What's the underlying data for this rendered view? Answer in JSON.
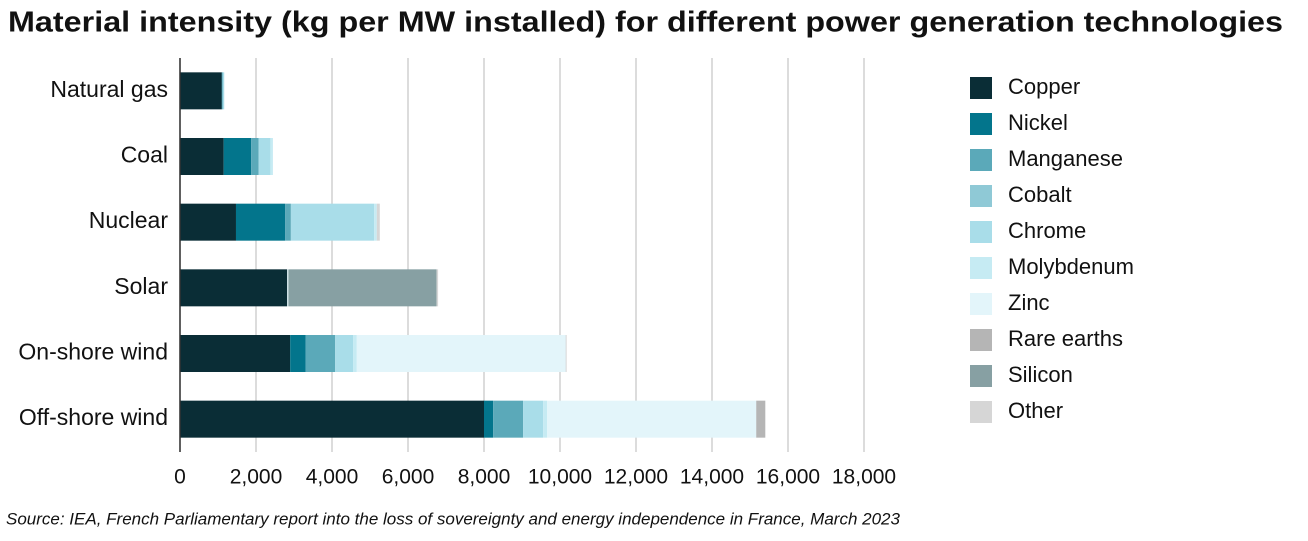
{
  "chart_data": {
    "type": "stacked-barh",
    "title": "Material intensity (kg per MW installed) for different  power generation technologies",
    "source": "Source: IEA, French Parliamentary report into the loss of sovereignty and energy independence in France, March 2023",
    "categories": [
      "Natural gas",
      "Coal",
      "Nuclear",
      "Solar",
      "On-shore wind",
      "Off-shore wind"
    ],
    "series": [
      {
        "name": "Copper",
        "color": "#0a2d36",
        "values": [
          1100,
          1150,
          1473,
          2822,
          2900,
          8000
        ]
      },
      {
        "name": "Nickel",
        "color": "#03758c",
        "values": [
          16,
          721,
          1297,
          0,
          404,
          240
        ]
      },
      {
        "name": "Manganese",
        "color": "#5ba9b9",
        "values": [
          0,
          200,
          148,
          0,
          780,
          790
        ]
      },
      {
        "name": "Cobalt",
        "color": "#8fc9d6",
        "values": [
          0,
          0,
          0,
          0,
          0,
          0
        ]
      },
      {
        "name": "Chrome",
        "color": "#a9dde9",
        "values": [
          48,
          308,
          2190,
          0,
          470,
          525
        ]
      },
      {
        "name": "Molybdenum",
        "color": "#c6ebf3",
        "values": [
          0,
          66,
          70,
          0,
          99,
          109
        ]
      },
      {
        "name": "Zinc",
        "color": "#e3f5fa",
        "values": [
          0,
          0,
          0,
          30,
          5500,
          5500
        ]
      },
      {
        "name": "Rare earths",
        "color": "#b5b5b5",
        "values": [
          0,
          0,
          0,
          0,
          14,
          239
        ]
      },
      {
        "name": "Silicon",
        "color": "#87a0a3",
        "values": [
          0,
          0,
          0,
          3900,
          0,
          0
        ]
      },
      {
        "name": "Other",
        "color": "#d6d6d6",
        "values": [
          0,
          0,
          80,
          40,
          0,
          0
        ]
      }
    ],
    "xlim": [
      0,
      18000
    ],
    "xticks": [
      0,
      {
        "value": 2000,
        "label": "2,000"
      },
      {
        "value": 4000,
        "label": "4,000"
      },
      {
        "value": 6000,
        "label": "6,000"
      },
      {
        "value": 8000,
        "label": "8,000"
      },
      {
        "value": 10000,
        "label": "10,000"
      },
      {
        "value": 12000,
        "label": "12,000"
      },
      {
        "value": 14000,
        "label": "14,000"
      },
      {
        "value": 16000,
        "label": "16,000"
      },
      {
        "value": 18000,
        "label": "18,000"
      }
    ],
    "grid": true
  }
}
